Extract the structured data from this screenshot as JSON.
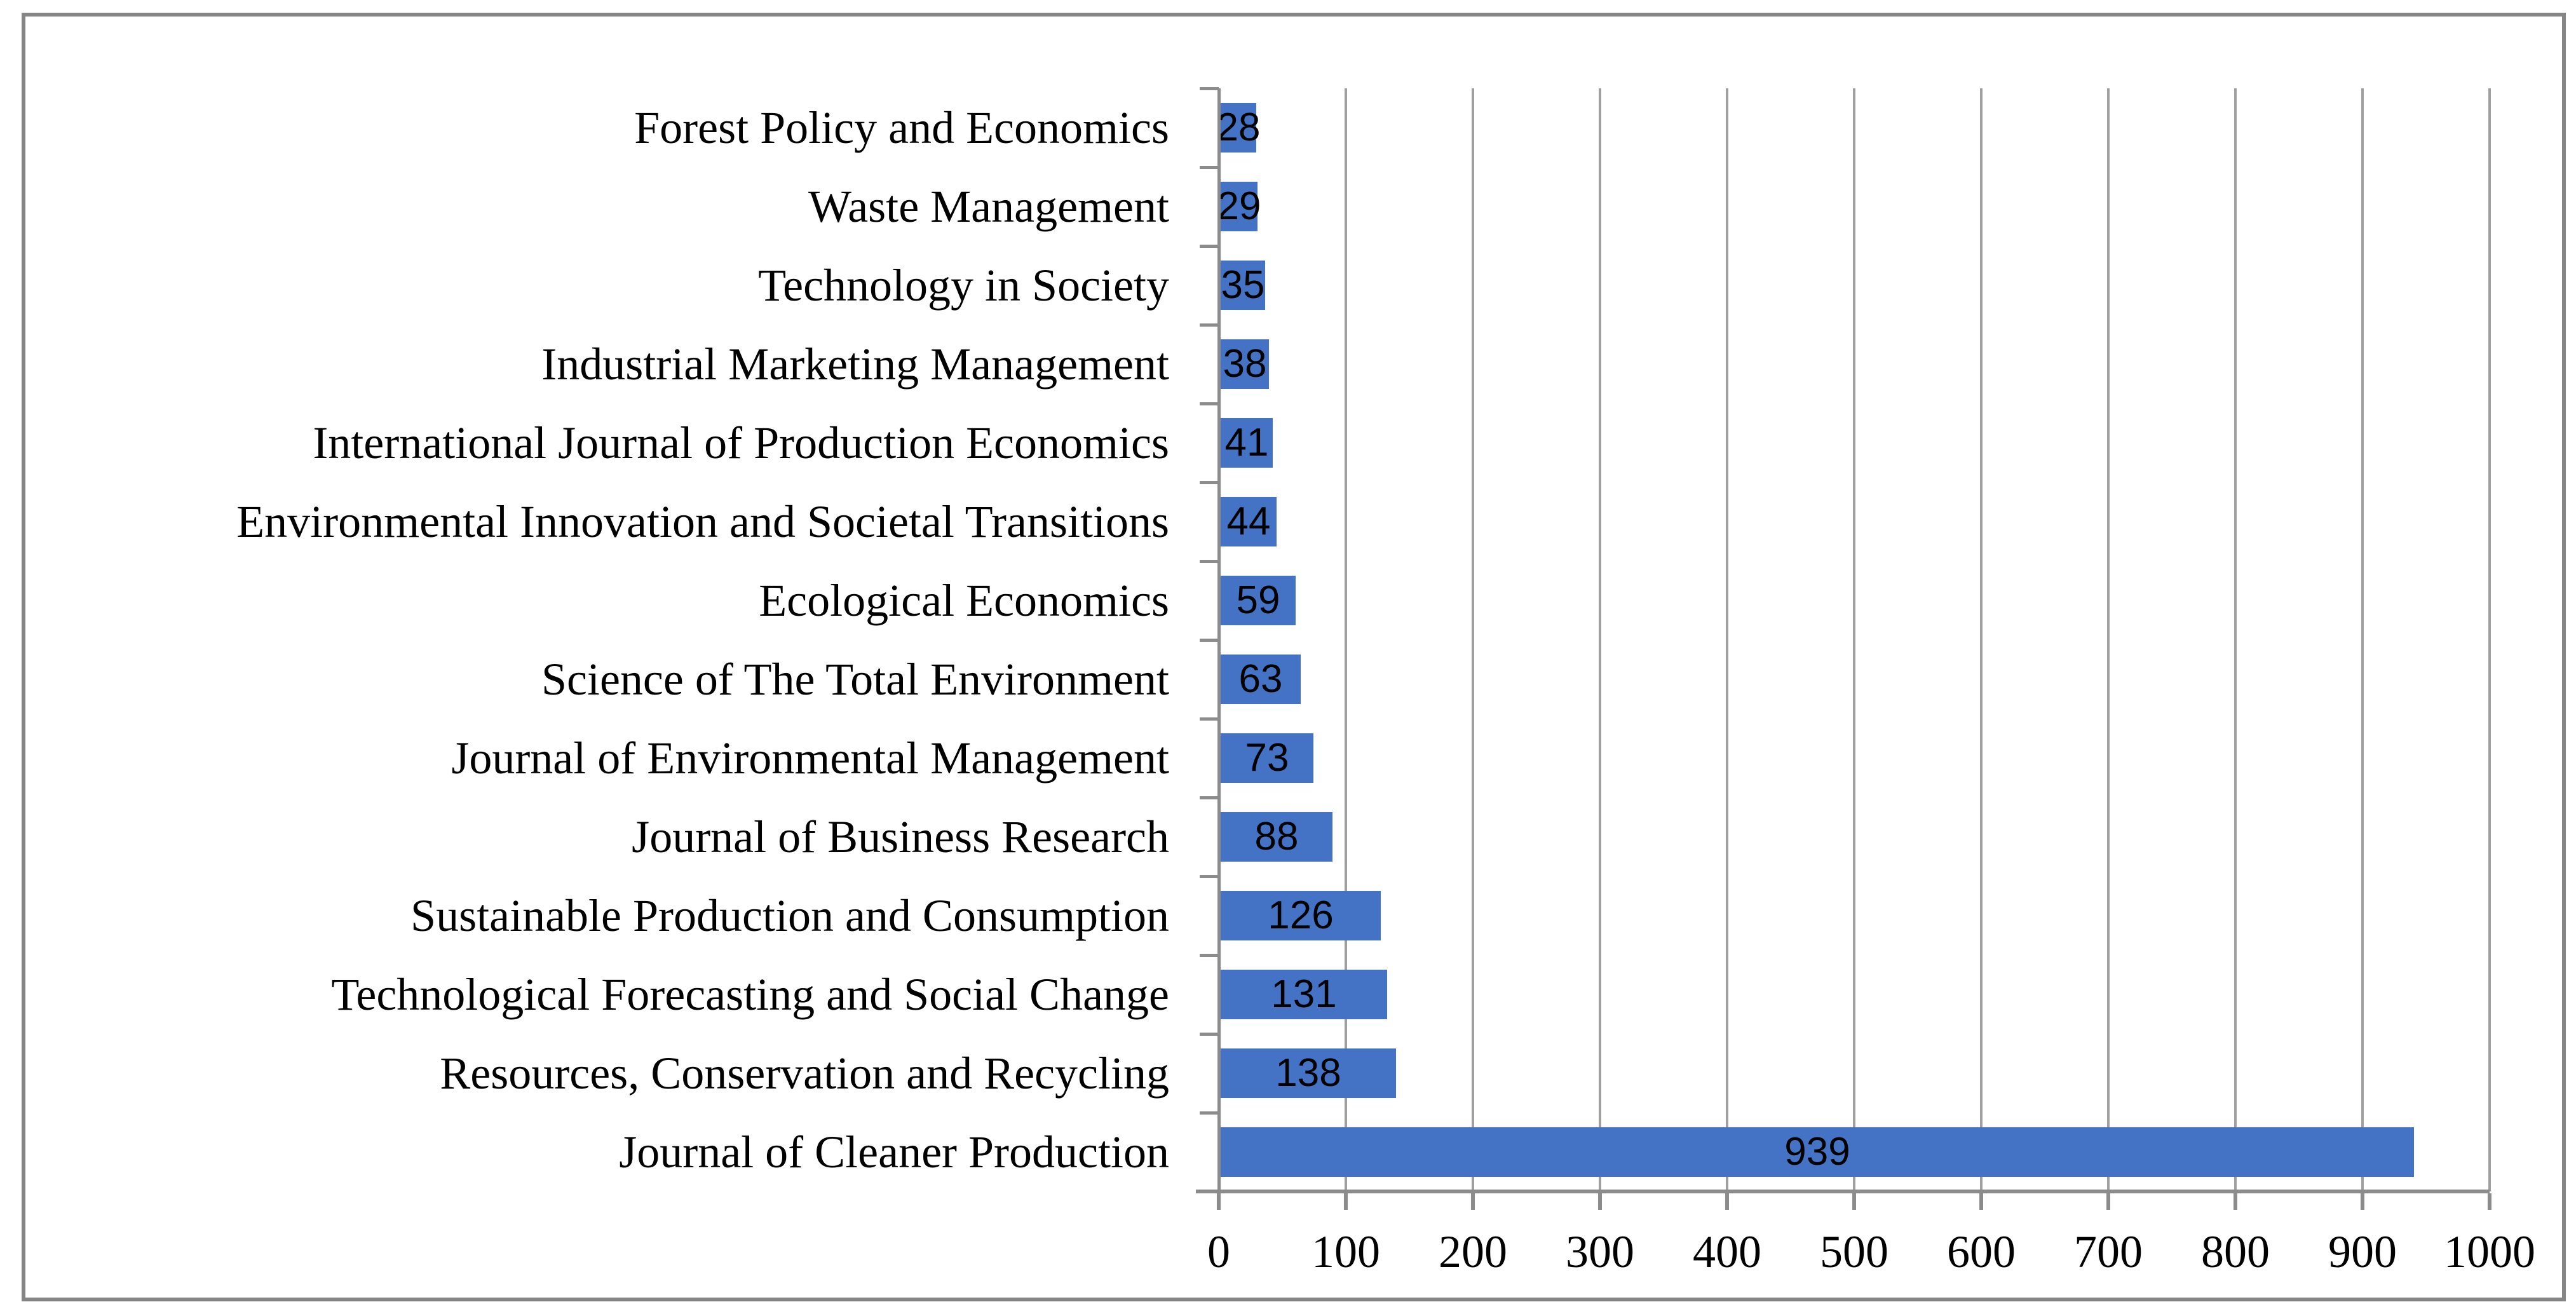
{
  "chart_data": {
    "type": "bar",
    "orientation": "horizontal",
    "title": "",
    "categories": [
      "Forest Policy and Economics",
      "Waste Management",
      "Technology in Society",
      "Industrial Marketing Management",
      "International Journal of Production Economics",
      "Environmental Innovation and Societal Transitions",
      "Ecological Economics",
      "Science of The Total Environment",
      "Journal of Environmental Management",
      "Journal of Business Research",
      "Sustainable Production and Consumption",
      "Technological Forecasting and Social Change",
      "Resources, Conservation and Recycling",
      "Journal of Cleaner Production"
    ],
    "values": [
      28,
      29,
      35,
      38,
      41,
      44,
      59,
      63,
      73,
      88,
      126,
      131,
      138,
      939
    ],
    "data_labels": [
      "28",
      "29",
      "35",
      "38",
      "41",
      "44",
      "59",
      "63",
      "73",
      "88",
      "126",
      "131",
      "138",
      "939"
    ],
    "xlabel": "",
    "ylabel": "",
    "xlim": [
      0,
      1000
    ],
    "x_ticks": [
      0,
      100,
      200,
      300,
      400,
      500,
      600,
      700,
      800,
      900,
      1000
    ],
    "x_tick_labels": [
      "0",
      "100",
      "200",
      "300",
      "400",
      "500",
      "600",
      "700",
      "800",
      "900",
      "1000"
    ],
    "grid": "vertical-gridlines-on",
    "legend": "none",
    "colors": {
      "bar_fill": "#4472C4",
      "axis_line": "#8C8C8C",
      "gridline": "#A0A0A0",
      "frame_border": "#858585",
      "label_text": "#000000"
    }
  }
}
